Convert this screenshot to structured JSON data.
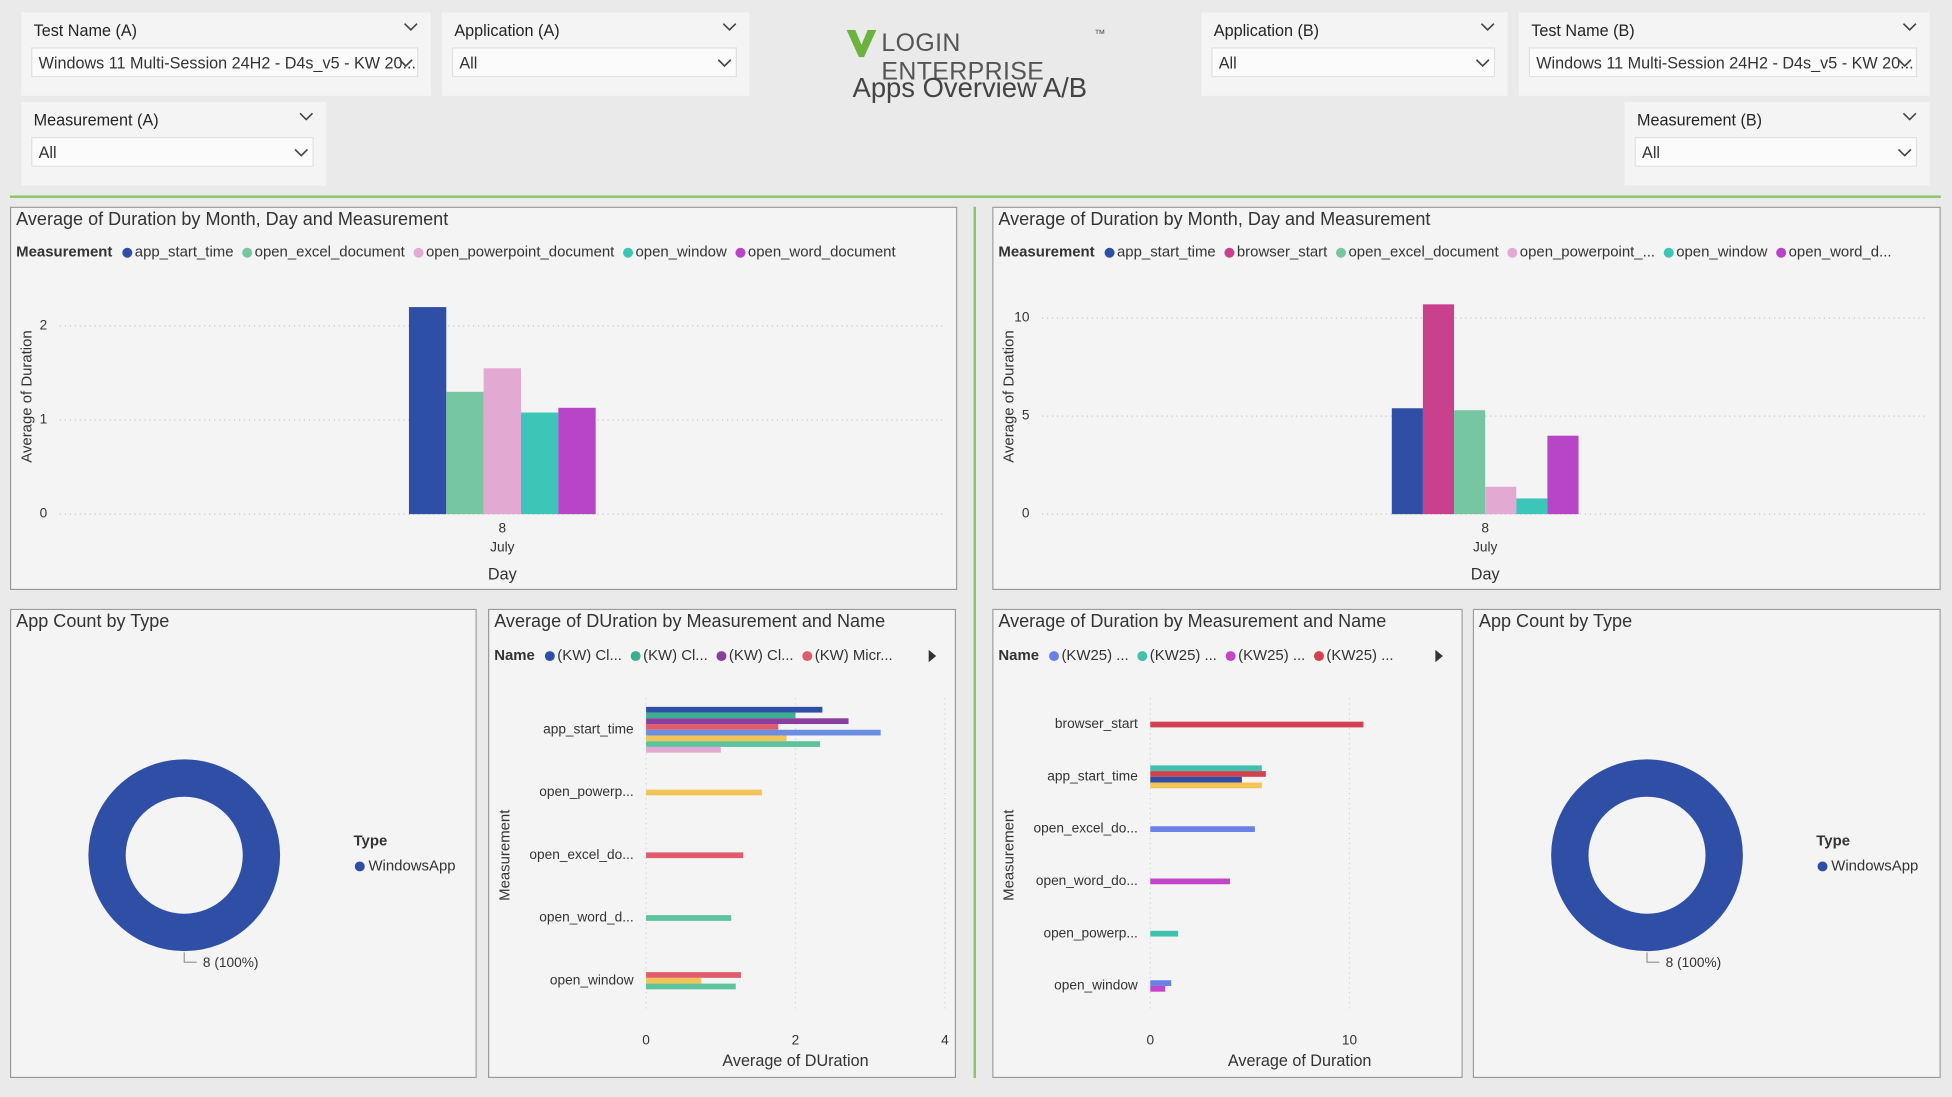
{
  "header": {
    "brand": "LOGIN ENTERPRISE",
    "trademark": "™",
    "title": "Apps Overview A/B"
  },
  "filters": [
    {
      "label": "Test Name (A)",
      "value": "Windows 11 Multi-Session 24H2 - D4s_v5 - KW 20..."
    },
    {
      "label": "Application (A)",
      "value": "All"
    },
    {
      "label": "Measurement (A)",
      "value": "All"
    },
    {
      "label": "Application (B)",
      "value": "All"
    },
    {
      "label": "Test Name (B)",
      "value": "Windows 11 Multi-Session 24H2 - D4s_v5 - KW 20..."
    },
    {
      "label": "Measurement (B)",
      "value": "All"
    }
  ],
  "chart_data": [
    {
      "type": "bar",
      "title": "Average of Duration by Month, Day and Measurement",
      "legend_title": "Measurement",
      "categories": [
        "8"
      ],
      "category_group": "July",
      "x_label": "Day",
      "y_label": "Average of Duration",
      "ylim": [
        0,
        2.5
      ],
      "yticks": [
        0,
        1,
        2
      ],
      "grid": true,
      "series": [
        {
          "name": "app_start_time",
          "color": "#2f4fa6",
          "values": [
            2.2
          ]
        },
        {
          "name": "open_excel_document",
          "color": "#76c6a2",
          "values": [
            1.3
          ]
        },
        {
          "name": "open_powerpoint_document",
          "color": "#e2a9d3",
          "values": [
            1.55
          ]
        },
        {
          "name": "open_window",
          "color": "#3cc6b8",
          "values": [
            1.08
          ]
        },
        {
          "name": "open_word_document",
          "color": "#b845c8",
          "values": [
            1.13
          ]
        }
      ]
    },
    {
      "type": "bar",
      "title": "Average of Duration by Month, Day and Measurement",
      "legend_title": "Measurement",
      "categories": [
        "8"
      ],
      "category_group": "July",
      "x_label": "Day",
      "y_label": "Average of Duration",
      "ylim": [
        0,
        12
      ],
      "yticks": [
        0,
        5,
        10
      ],
      "grid": true,
      "series": [
        {
          "name": "app_start_time",
          "color": "#2f4fa6",
          "values": [
            5.4
          ]
        },
        {
          "name": "browser_start",
          "color": "#c9418c",
          "values": [
            10.7
          ]
        },
        {
          "name": "open_excel_document",
          "color": "#76c6a2",
          "values": [
            5.3
          ]
        },
        {
          "name": "open_powerpoint_...",
          "color": "#e2a9d3",
          "values": [
            1.4
          ]
        },
        {
          "name": "open_window",
          "color": "#3cc6b8",
          "values": [
            0.8
          ]
        },
        {
          "name": "open_word_d...",
          "color": "#b845c8",
          "values": [
            4.0
          ]
        }
      ]
    },
    {
      "type": "donut",
      "title": "App Count by Type",
      "legend_title": "Type",
      "categories": [
        "WindowsApp"
      ],
      "values": [
        8
      ],
      "value_labels": [
        "8 (100%)"
      ],
      "colors": [
        "#2f4fa6"
      ]
    },
    {
      "type": "hbar",
      "title": "Average of DUration by Measurement and Name",
      "legend_title": "Name",
      "categories": [
        "app_start_time",
        "open_powerp...",
        "open_excel_do...",
        "open_word_d...",
        "open_window"
      ],
      "x_label": "Average of DUration",
      "y_label": "Measurement",
      "xlim": [
        0,
        4
      ],
      "xticks": [
        0,
        2,
        4
      ],
      "grid": true,
      "series": [
        {
          "name": "(KW) Cl...",
          "color": "#2f4fa6",
          "values": [
            2.36,
            null,
            null,
            null,
            null
          ]
        },
        {
          "name": "(KW) Cl...",
          "color": "#3bb08f",
          "values": [
            2.0,
            null,
            null,
            null,
            null
          ]
        },
        {
          "name": "(KW) Cl...",
          "color": "#8a3f9e",
          "values": [
            2.71,
            null,
            null,
            null,
            null
          ]
        },
        {
          "name": "(KW) Micr...",
          "color": "#e05c6c",
          "values": [
            1.77,
            null,
            1.3,
            null,
            1.27
          ]
        },
        {
          "color": "#6c8ee0",
          "values": [
            3.14,
            null,
            null,
            null,
            null
          ]
        },
        {
          "color": "#f2c458",
          "values": [
            1.88,
            1.55,
            null,
            null,
            0.74
          ]
        },
        {
          "color": "#5cc49c",
          "values": [
            2.33,
            null,
            null,
            1.14,
            1.2
          ]
        },
        {
          "color": "#e2a9d3",
          "values": [
            1.0,
            null,
            null,
            null,
            null
          ]
        }
      ]
    },
    {
      "type": "hbar",
      "title": "Average of Duration by Measurement and Name",
      "legend_title": "Name",
      "categories": [
        "browser_start",
        "app_start_time",
        "open_excel_do...",
        "open_word_do...",
        "open_powerp...",
        "open_window"
      ],
      "x_label": "Average of Duration",
      "y_label": "Measurement",
      "xlim": [
        0,
        15
      ],
      "xticks": [
        0,
        10
      ],
      "grid": true,
      "series": [
        {
          "name": "(KW25) ...",
          "color": "#6a80e6",
          "values": [
            null,
            null,
            5.25,
            null,
            null,
            1.05
          ]
        },
        {
          "name": "(KW25) ...",
          "color": "#3fc1ae",
          "values": [
            null,
            5.6,
            null,
            null,
            1.4,
            null
          ]
        },
        {
          "name": "(KW25) ...",
          "color": "#c245cc",
          "values": [
            null,
            null,
            null,
            4.0,
            null,
            0.75
          ]
        },
        {
          "name": "(KW25) ...",
          "color": "#d2414f",
          "values": [
            10.7,
            5.8,
            null,
            null,
            null,
            null
          ]
        },
        {
          "color": "#2f4fa6",
          "values": [
            null,
            4.6,
            null,
            null,
            null,
            null
          ]
        },
        {
          "color": "#f2c458",
          "values": [
            null,
            5.6,
            null,
            null,
            null,
            null
          ]
        }
      ]
    },
    {
      "type": "donut",
      "title": "App Count by Type",
      "legend_title": "Type",
      "categories": [
        "WindowsApp"
      ],
      "values": [
        8
      ],
      "value_labels": [
        "8 (100%)"
      ],
      "colors": [
        "#2f4fa6"
      ]
    }
  ]
}
